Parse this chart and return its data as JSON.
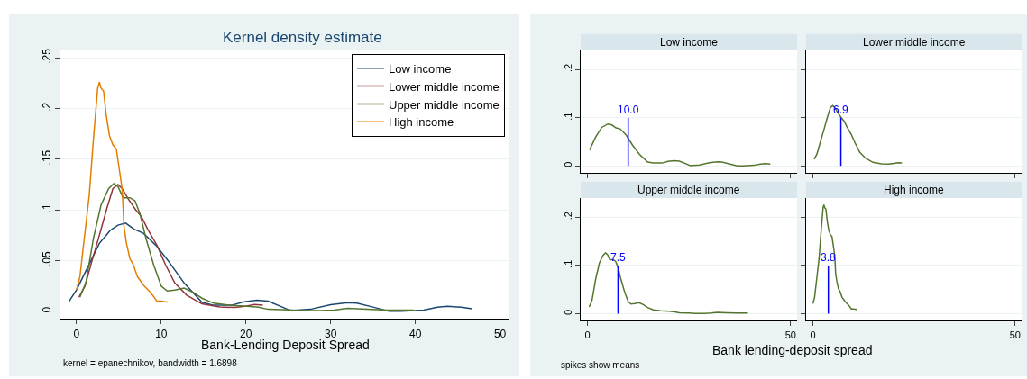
{
  "chart_data": [
    {
      "type": "line",
      "title": "Kernel density estimate",
      "xlabel": "Bank-Lending Deposit Spread",
      "annotations": [
        "kernel = epanechnikov, bandwidth = 1.6898"
      ],
      "xlim": [
        -1.9,
        51
      ],
      "ylim": [
        -0.0075,
        0.2575
      ],
      "xticks": [
        0,
        10,
        20,
        30,
        40,
        50
      ],
      "yticks": [
        {
          "value": 0,
          "label": "0"
        },
        {
          "value": 0.05,
          "label": ".05"
        },
        {
          "value": 0.1,
          "label": ".1"
        },
        {
          "value": 0.15,
          "label": ".15"
        },
        {
          "value": 0.2,
          "label": ".2"
        },
        {
          "value": 0.25,
          "label": ".25"
        }
      ],
      "grid": "y",
      "legend": "top right",
      "series": [
        {
          "name": "Low income",
          "color": "#1a476f",
          "x": [
            -0.9,
            0,
            1.3,
            2.7,
            4.0,
            4.9,
            5.8,
            6.8,
            7.9,
            9.5,
            10.9,
            12.7,
            14.8,
            16.2,
            18.3,
            19.8,
            21.3,
            22.6,
            25.3,
            27.6,
            30,
            32,
            33.1,
            35.1,
            36.9,
            38.3,
            41,
            42.6,
            43.8,
            45.4,
            46.7
          ],
          "values": [
            0.0095,
            0.021,
            0.043,
            0.067,
            0.08,
            0.085,
            0.087,
            0.081,
            0.077,
            0.064,
            0.049,
            0.028,
            0.009,
            0.006,
            0.006,
            0.0095,
            0.011,
            0.01,
            0.0007,
            0.002,
            0.0066,
            0.0086,
            0.008,
            0.004,
            0,
            0,
            0.0013,
            0.004,
            0.005,
            0.004,
            0.0026
          ]
        },
        {
          "name": "Lower middle income",
          "color": "#90353b",
          "x": [
            0.3,
            1.0,
            1.8,
            2.7,
            3.6,
            4.3,
            4.9,
            5.4,
            6.1,
            7.0,
            7.7,
            8.4,
            9.5,
            10.5,
            11.6,
            13,
            14.8,
            16.9,
            18.7,
            20.1,
            21,
            22
          ],
          "values": [
            0.014,
            0.025,
            0.049,
            0.075,
            0.102,
            0.121,
            0.125,
            0.121,
            0.111,
            0.1,
            0.093,
            0.081,
            0.065,
            0.046,
            0.028,
            0.016,
            0.0074,
            0.0044,
            0.0038,
            0.0053,
            0.0068,
            0.0062
          ]
        },
        {
          "name": "Upper middle income",
          "color": "#55752f",
          "x": [
            0.4,
            1.1,
            2.0,
            2.9,
            3.8,
            4.4,
            4.9,
            5.5,
            6.3,
            6.9,
            7.5,
            8.2,
            9.1,
            10,
            10.7,
            11.6,
            12.7,
            13.7,
            14.8,
            16.2,
            18,
            20.1,
            21.5,
            22.6,
            25.1,
            26.5,
            28.8,
            30.4,
            32,
            34.3,
            36.6,
            39.8
          ],
          "values": [
            0.014,
            0.028,
            0.072,
            0.105,
            0.121,
            0.126,
            0.123,
            0.112,
            0.112,
            0.109,
            0.096,
            0.072,
            0.046,
            0.025,
            0.02,
            0.021,
            0.023,
            0.019,
            0.013,
            0.008,
            0.006,
            0.005,
            0.004,
            0.002,
            0.0015,
            0.0007,
            0.0007,
            0.0013,
            0.003,
            0.002,
            0.0013,
            0.0013
          ]
        },
        {
          "name": "High income",
          "color": "#e37e00",
          "x": [
            0,
            0.4,
            1.0,
            1.5,
            2.0,
            2.5,
            2.7,
            2.9,
            3.2,
            3.5,
            3.9,
            4.3,
            4.7,
            5.0,
            5.4,
            5.6,
            5.9,
            6.3,
            6.7,
            7.2,
            8.0,
            8.8,
            9.5,
            10,
            10.8
          ],
          "values": [
            0.021,
            0.034,
            0.078,
            0.114,
            0.17,
            0.22,
            0.226,
            0.22,
            0.217,
            0.194,
            0.173,
            0.164,
            0.16,
            0.143,
            0.12,
            0.084,
            0.067,
            0.052,
            0.046,
            0.034,
            0.025,
            0.018,
            0.01,
            0.01,
            0.009
          ]
        }
      ]
    },
    {
      "type": "line",
      "title": "Low income",
      "xlim": [
        -1.7,
        51.6
      ],
      "ylim": [
        -0.0145,
        0.24
      ],
      "xticks": [
        0,
        50
      ],
      "yticks": [
        {
          "value": 0,
          "label": "0"
        },
        {
          "value": 0.1,
          "label": ".1"
        },
        {
          "value": 0.2,
          "label": ".2"
        }
      ],
      "grid": "y",
      "tick_labels": "y",
      "ref_lines": [
        {
          "axis": "x",
          "value": 10.0,
          "label": "10.0",
          "color": "#0000ff"
        }
      ],
      "series": [
        {
          "color": "#55752f",
          "x": [
            0.5,
            2,
            3.5,
            5,
            6,
            7,
            8,
            9.5,
            11,
            12.7,
            14.8,
            16.2,
            18.3,
            19.8,
            21.3,
            22.6,
            25.3,
            27.6,
            30,
            32,
            33.1,
            35.1,
            36.9,
            38.3,
            41,
            42.6,
            43.8,
            45
          ],
          "values": [
            0.033,
            0.06,
            0.08,
            0.087,
            0.085,
            0.079,
            0.077,
            0.064,
            0.044,
            0.025,
            0.008,
            0.006,
            0.006,
            0.0095,
            0.011,
            0.01,
            0.0007,
            0.002,
            0.0066,
            0.0086,
            0.008,
            0.004,
            0,
            0,
            0.0013,
            0.004,
            0.005,
            0.004
          ]
        }
      ]
    },
    {
      "type": "line",
      "title": "Lower middle income",
      "xlim": [
        -1.7,
        51.6
      ],
      "ylim": [
        -0.0145,
        0.24
      ],
      "xticks": [
        0,
        50
      ],
      "yticks": [
        {
          "value": 0,
          "label": null
        },
        {
          "value": 0.1,
          "label": null
        },
        {
          "value": 0.2,
          "label": null
        }
      ],
      "grid": "y",
      "tick_labels": false,
      "ref_lines": [
        {
          "axis": "x",
          "value": 6.9,
          "label": "6.9",
          "color": "#0000ff"
        }
      ],
      "series": [
        {
          "color": "#55752f",
          "x": [
            0.3,
            1.0,
            1.8,
            2.7,
            3.6,
            4.3,
            4.9,
            5.4,
            6.1,
            7.0,
            7.7,
            8.4,
            9.5,
            10.5,
            11.6,
            13,
            14.8,
            16.9,
            18.7,
            20.1,
            21,
            22
          ],
          "values": [
            0.014,
            0.025,
            0.049,
            0.075,
            0.102,
            0.121,
            0.125,
            0.121,
            0.111,
            0.1,
            0.093,
            0.081,
            0.065,
            0.046,
            0.028,
            0.016,
            0.0074,
            0.0044,
            0.0038,
            0.0053,
            0.0068,
            0.0062
          ]
        }
      ]
    },
    {
      "type": "line",
      "title": "Upper middle income",
      "xlabel": "Bank lending-deposit spread",
      "annotations": [
        "spikes show means"
      ],
      "xlim": [
        -1.7,
        51.6
      ],
      "ylim": [
        -0.0145,
        0.24
      ],
      "xticks": [
        0,
        50
      ],
      "yticks": [
        {
          "value": 0,
          "label": "0"
        },
        {
          "value": 0.1,
          "label": ".1"
        },
        {
          "value": 0.2,
          "label": ".2"
        }
      ],
      "grid": "y",
      "ref_lines": [
        {
          "axis": "x",
          "value": 7.5,
          "label": "7.5",
          "color": "#0000ff"
        }
      ],
      "series": [
        {
          "color": "#55752f",
          "x": [
            0.4,
            1.1,
            2.0,
            2.9,
            3.8,
            4.4,
            4.9,
            5.5,
            6.3,
            6.9,
            7.5,
            8.2,
            9.1,
            10,
            10.7,
            11.6,
            12.7,
            13.7,
            14.8,
            16.2,
            18,
            20.1,
            21.5,
            22.6,
            25.1,
            26.5,
            28.8,
            30.4,
            32,
            34.3,
            36.6,
            39.5
          ],
          "values": [
            0.014,
            0.028,
            0.072,
            0.105,
            0.121,
            0.126,
            0.123,
            0.112,
            0.112,
            0.109,
            0.096,
            0.072,
            0.046,
            0.025,
            0.02,
            0.021,
            0.023,
            0.019,
            0.013,
            0.008,
            0.006,
            0.005,
            0.004,
            0.002,
            0.0015,
            0.0007,
            0.0007,
            0.0013,
            0.003,
            0.002,
            0.0013,
            0.0013
          ]
        }
      ]
    },
    {
      "type": "line",
      "title": "High income",
      "xlim": [
        -1.7,
        51.6
      ],
      "ylim": [
        -0.0145,
        0.24
      ],
      "xticks": [
        0,
        50
      ],
      "yticks": [
        {
          "value": 0,
          "label": null
        },
        {
          "value": 0.1,
          "label": null
        },
        {
          "value": 0.2,
          "label": null
        }
      ],
      "grid": "y",
      "tick_labels": "x",
      "ref_lines": [
        {
          "axis": "x",
          "value": 3.8,
          "label": "3.8",
          "color": "#0000ff"
        }
      ],
      "series": [
        {
          "color": "#55752f",
          "x": [
            0,
            0.4,
            1.0,
            1.5,
            2.0,
            2.5,
            2.7,
            2.9,
            3.2,
            3.5,
            3.9,
            4.3,
            4.7,
            5.0,
            5.4,
            5.6,
            5.9,
            6.3,
            6.7,
            7.2,
            8.0,
            8.8,
            9.5,
            10,
            10.8
          ],
          "values": [
            0.021,
            0.034,
            0.078,
            0.114,
            0.17,
            0.22,
            0.226,
            0.22,
            0.217,
            0.194,
            0.173,
            0.164,
            0.16,
            0.143,
            0.12,
            0.084,
            0.067,
            0.052,
            0.046,
            0.034,
            0.025,
            0.018,
            0.01,
            0.01,
            0.009
          ]
        }
      ]
    }
  ]
}
